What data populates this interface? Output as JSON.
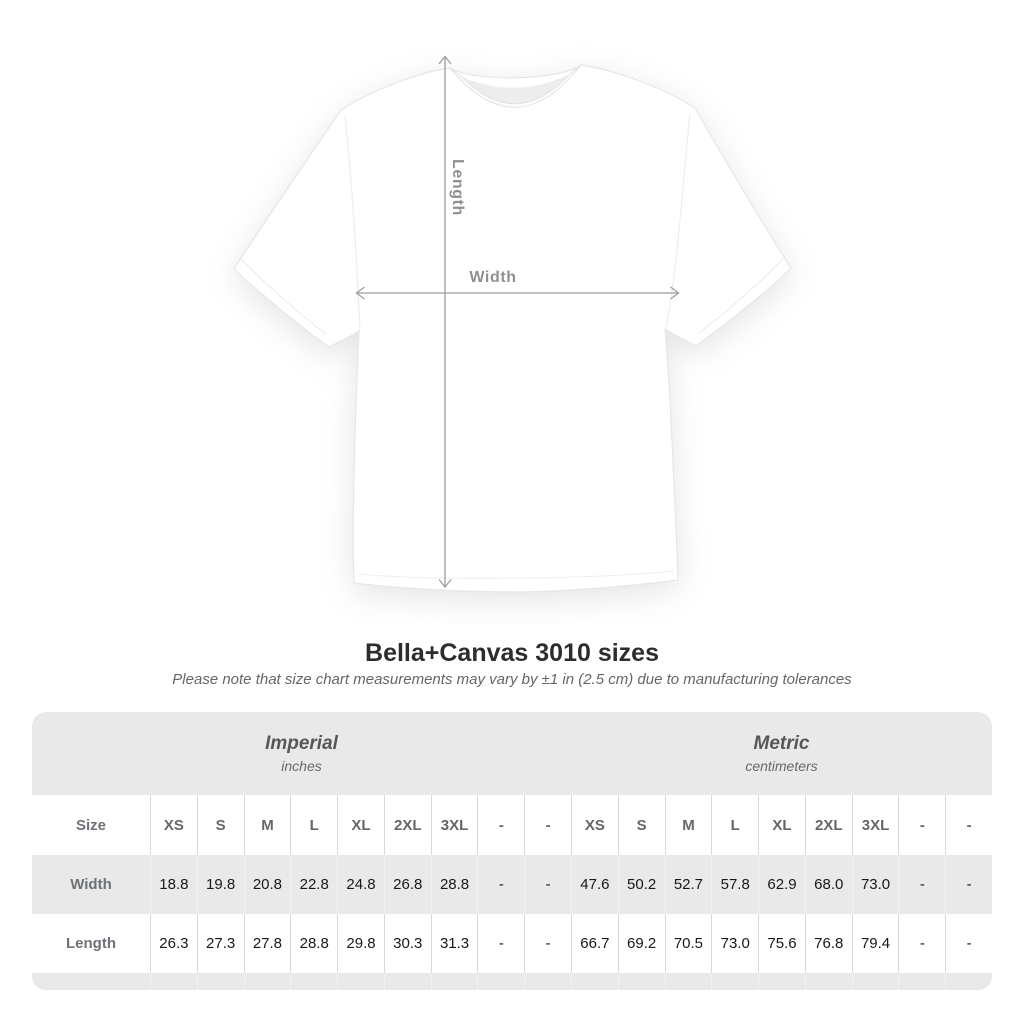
{
  "hero": {
    "length_label": "Length",
    "width_label": "Width"
  },
  "heading": {
    "title": "Bella+Canvas 3010 sizes",
    "note": "Please note that size chart measurements may vary by ±1 in (2.5 cm) due to manufacturing tolerances"
  },
  "table": {
    "groups": [
      {
        "name": "Imperial",
        "unit": "inches"
      },
      {
        "name": "Metric",
        "unit": "centimeters"
      }
    ],
    "size_label": "Size",
    "sizes": [
      "XS",
      "S",
      "M",
      "L",
      "XL",
      "2XL",
      "3XL",
      "-",
      "-"
    ],
    "rows": [
      {
        "label": "Width",
        "imperial": [
          "18.8",
          "19.8",
          "20.8",
          "22.8",
          "24.8",
          "26.8",
          "28.8",
          "-",
          "-"
        ],
        "metric": [
          "47.6",
          "50.2",
          "52.7",
          "57.8",
          "62.9",
          "68.0",
          "73.0",
          "-",
          "-"
        ]
      },
      {
        "label": "Length",
        "imperial": [
          "26.3",
          "27.3",
          "27.8",
          "28.8",
          "29.8",
          "30.3",
          "31.3",
          "-",
          "-"
        ],
        "metric": [
          "66.7",
          "69.2",
          "70.5",
          "73.0",
          "75.6",
          "76.8",
          "79.4",
          "-",
          "-"
        ]
      }
    ]
  },
  "colors": {
    "band_gray": "#e9e9e9",
    "separator_on_white": "#d9d9d9",
    "separator_on_gray": "#f3f3f3",
    "arrow_gray": "#9e9e9e",
    "label_gray": "#8d9093",
    "header_text": "#63676a",
    "value_text": "#17181a",
    "title_text": "#2d2d2d",
    "note_text": "#666666"
  }
}
